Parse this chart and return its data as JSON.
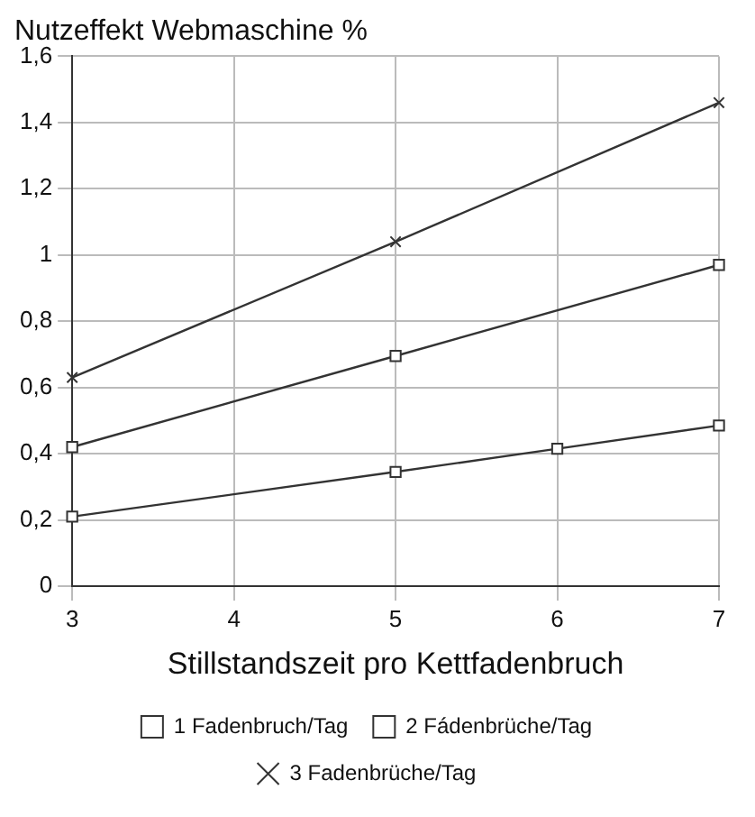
{
  "chart_data": {
    "type": "line",
    "title": "Nutzeffekt Webmaschine %",
    "xlabel": "Stillstandszeit pro Kettfadenbruch",
    "xlim": [
      3,
      7
    ],
    "xticks": [
      3,
      4,
      5,
      6,
      7
    ],
    "ylim": [
      0,
      1.6
    ],
    "yticks": [
      0,
      {
        "value": 0.2,
        "label": "0,2"
      },
      {
        "value": 0.4,
        "label": "0,4"
      },
      {
        "value": 0.6,
        "label": "0,6"
      },
      {
        "value": 0.8,
        "label": "0,8"
      },
      1,
      {
        "value": 1.2,
        "label": "1,2"
      },
      {
        "value": 1.4,
        "label": "1,4"
      },
      {
        "value": 1.6,
        "label": "1,6"
      }
    ],
    "grid": true,
    "legend": "bottom",
    "line_style": "solid",
    "series": [
      {
        "name": "1 Fadenbruch/Tag",
        "color": "#333333",
        "marker": "square",
        "x": [
          3,
          5,
          6,
          7
        ],
        "values": [
          0.21,
          0.345,
          0.415,
          0.485
        ]
      },
      {
        "name": "2 Fádenbrüche/Tag",
        "color": "#333333",
        "marker": "square",
        "x": [
          3,
          5,
          7
        ],
        "values": [
          0.42,
          0.695,
          0.97
        ]
      },
      {
        "name": "3 Fadenbrüche/Tag",
        "color": "#333333",
        "marker": "cross",
        "x": [
          3,
          5,
          7
        ],
        "values": [
          0.63,
          1.04,
          1.46
        ]
      }
    ]
  }
}
